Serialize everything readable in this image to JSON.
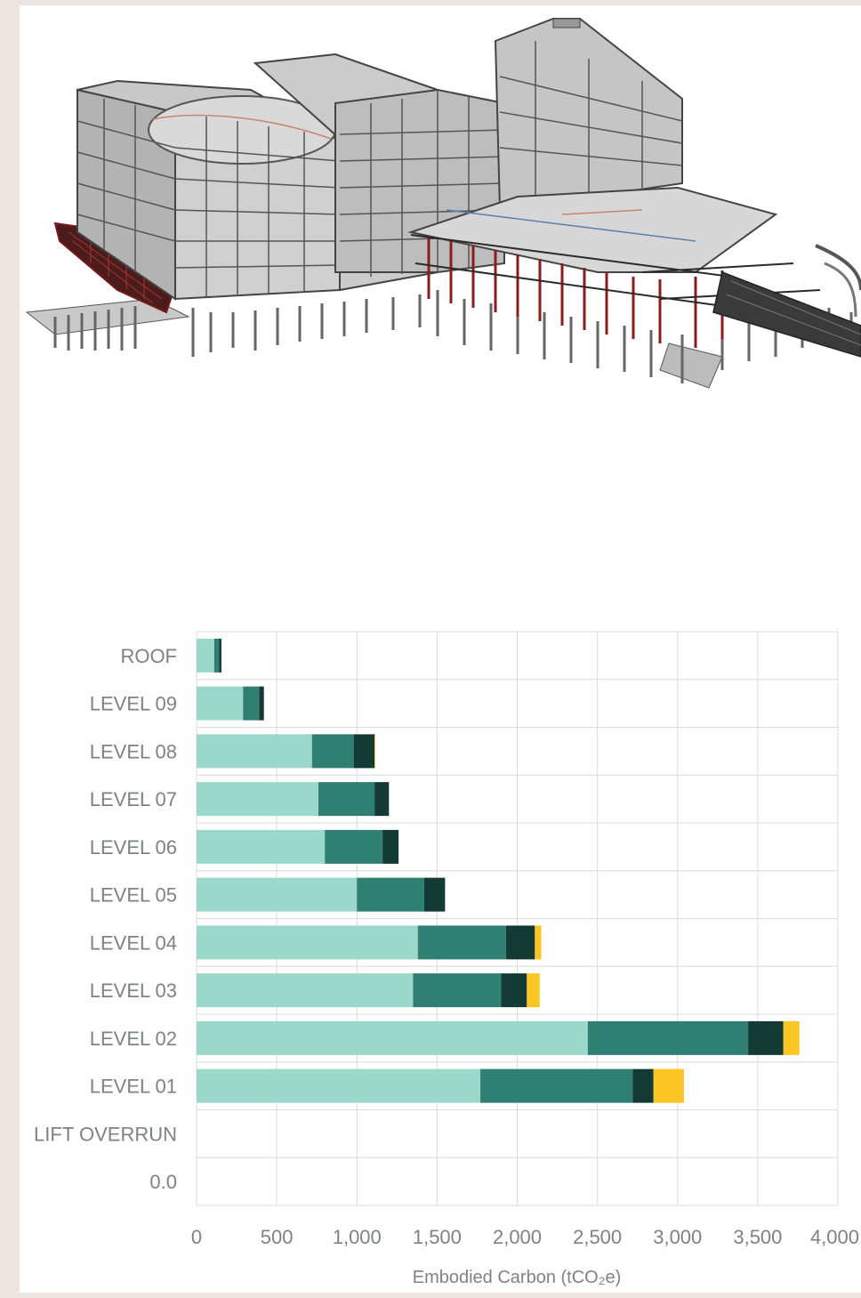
{
  "colors": {
    "structure": "#9bd8cc",
    "frame": "#2f7f73",
    "foundations": "#143a35",
    "other": "#fbc524",
    "grid": "#dcdcdc",
    "text": "#7d8384",
    "steel_highlight": "#7a1a1a"
  },
  "building_image": {
    "icon": "building-structural-model-icon"
  },
  "chart_data": {
    "type": "bar",
    "orientation": "horizontal",
    "stacked": true,
    "categories": [
      "ROOF",
      "LEVEL 09",
      "LEVEL 08",
      "LEVEL 07",
      "LEVEL 06",
      "LEVEL 05",
      "LEVEL 04",
      "LEVEL 03",
      "LEVEL 02",
      "LEVEL 01",
      "LIFT OVERRUN",
      "0.0"
    ],
    "series": [
      {
        "values": [
          110,
          290,
          720,
          760,
          800,
          1000,
          1380,
          1350,
          2440,
          1770,
          0,
          0
        ]
      },
      {
        "values": [
          30,
          100,
          260,
          350,
          360,
          420,
          550,
          550,
          1000,
          950,
          0,
          0
        ]
      },
      {
        "values": [
          15,
          30,
          130,
          90,
          100,
          130,
          180,
          160,
          220,
          130,
          0,
          0
        ]
      },
      {
        "values": [
          0,
          0,
          5,
          0,
          0,
          0,
          40,
          80,
          100,
          190,
          0,
          0
        ]
      }
    ],
    "xlim": [
      0,
      4000
    ],
    "xticks": [
      "0",
      "500",
      "1,000",
      "1,500",
      "2,000",
      "2,500",
      "3,000",
      "3,500",
      "4,000"
    ],
    "xlabel": "Embodied Carbon (tCO₂e)",
    "grid": true,
    "legend": "none"
  }
}
